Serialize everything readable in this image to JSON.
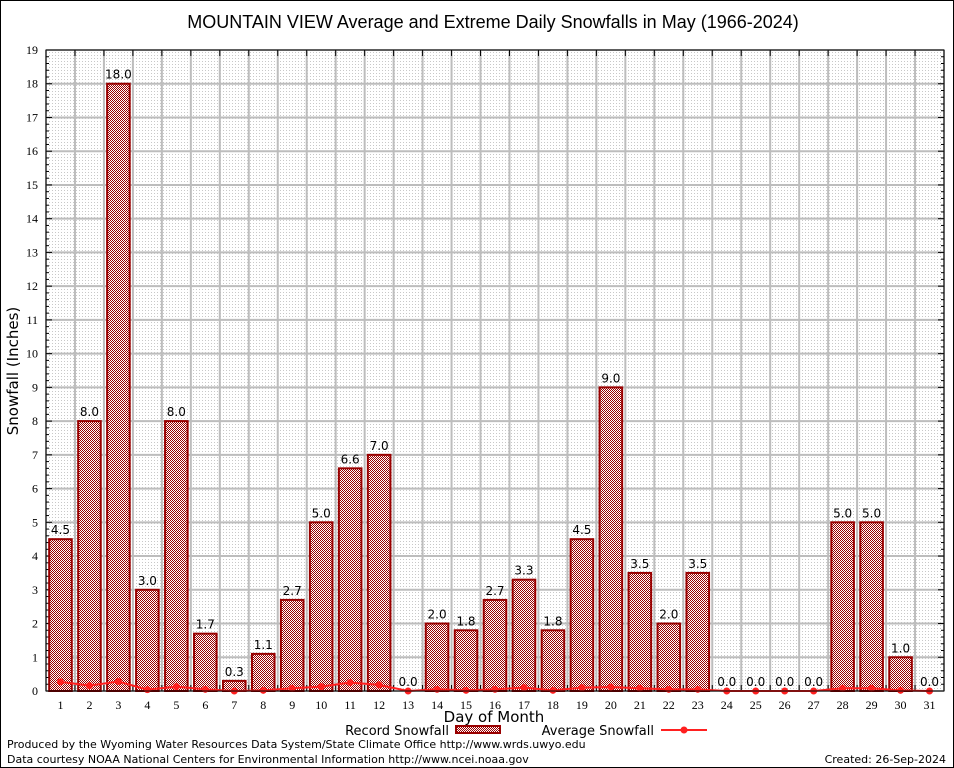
{
  "chart_data": {
    "type": "bar",
    "title": "MOUNTAIN VIEW Average and Extreme Daily Snowfalls in May (1966-2024)",
    "xlabel": "Day of Month",
    "ylabel": "Snowfall (Inches)",
    "ylim": [
      0,
      19
    ],
    "yticks": [
      0,
      1,
      2,
      3,
      4,
      5,
      6,
      7,
      8,
      9,
      10,
      11,
      12,
      13,
      14,
      15,
      16,
      17,
      18,
      19
    ],
    "grid": true,
    "categories": [
      "1",
      "2",
      "3",
      "4",
      "5",
      "6",
      "7",
      "8",
      "9",
      "10",
      "11",
      "12",
      "13",
      "14",
      "15",
      "16",
      "17",
      "18",
      "19",
      "20",
      "21",
      "22",
      "23",
      "24",
      "25",
      "26",
      "27",
      "28",
      "29",
      "30",
      "31"
    ],
    "series": [
      {
        "name": "Record Snowfall",
        "type": "bar",
        "color": "#990000",
        "values": [
          4.5,
          8.0,
          18.0,
          3.0,
          8.0,
          1.7,
          0.3,
          1.1,
          2.7,
          5.0,
          6.6,
          7.0,
          0.0,
          2.0,
          1.8,
          2.7,
          3.3,
          1.8,
          4.5,
          9.0,
          3.5,
          2.0,
          3.5,
          0.0,
          0.0,
          0.0,
          0.0,
          5.0,
          5.0,
          1.0,
          0.0
        ],
        "labels": [
          "4.5",
          "8.0",
          "18.0",
          "3.0",
          "8.0",
          "1.7",
          "0.3",
          "1.1",
          "2.7",
          "5.0",
          "6.6",
          "7.0",
          "0.0",
          "2.0",
          "1.8",
          "2.7",
          "3.3",
          "1.8",
          "4.5",
          "9.0",
          "3.5",
          "2.0",
          "3.5",
          "0.0",
          "0.0",
          "0.0",
          "0.0",
          "5.0",
          "5.0",
          "1.0",
          "0.0"
        ]
      },
      {
        "name": "Average Snowfall",
        "type": "line",
        "color": "#ff2020",
        "values": [
          0.27,
          0.16,
          0.28,
          0.04,
          0.13,
          0.05,
          0.0,
          0.02,
          0.08,
          0.13,
          0.25,
          0.18,
          0.0,
          0.05,
          0.02,
          0.05,
          0.1,
          0.02,
          0.1,
          0.12,
          0.08,
          0.05,
          0.05,
          0.0,
          0.0,
          0.0,
          0.0,
          0.08,
          0.08,
          0.02,
          0.0
        ]
      }
    ],
    "legend": {
      "placement": "bottom-center",
      "entries": [
        "Record Snowfall",
        "Average Snowfall"
      ]
    }
  },
  "footer": {
    "line1": "Produced by the Wyoming Water Resources Data System/State Climate Office http://www.wrds.uwyo.edu",
    "line2": "Data courtesy NOAA National Centers for Environmental Information http://www.ncei.noaa.gov",
    "created": "Created: 26-Sep-2024"
  }
}
